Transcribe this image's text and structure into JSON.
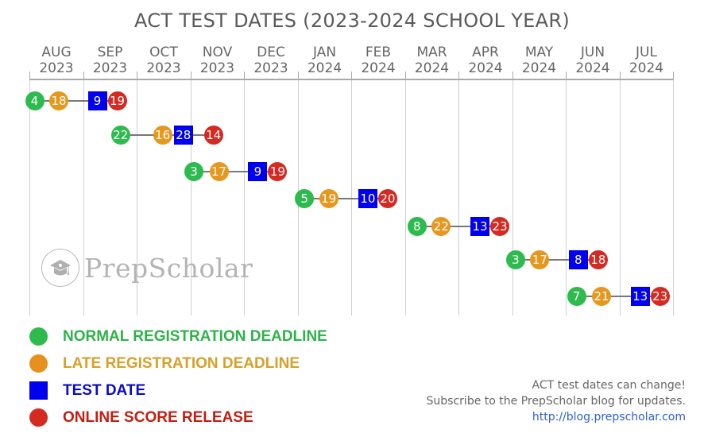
{
  "title": "ACT TEST DATES (2023-2024 SCHOOL YEAR)",
  "months": [
    {
      "month": "AUG",
      "year": "2023"
    },
    {
      "month": "SEP",
      "year": "2023"
    },
    {
      "month": "OCT",
      "year": "2023"
    },
    {
      "month": "NOV",
      "year": "2023"
    },
    {
      "month": "DEC",
      "year": "2023"
    },
    {
      "month": "JAN",
      "year": "2024"
    },
    {
      "month": "FEB",
      "year": "2024"
    },
    {
      "month": "MAR",
      "year": "2024"
    },
    {
      "month": "APR",
      "year": "2024"
    },
    {
      "month": "MAY",
      "year": "2024"
    },
    {
      "month": "JUN",
      "year": "2024"
    },
    {
      "month": "JUL",
      "year": "2024"
    }
  ],
  "colors": {
    "normal_registration": "#2dbb4e",
    "late_registration": "#e6981e",
    "test_date": "#0000ee",
    "score_release": "#d42a22",
    "axis": "#aaaaaa",
    "grid": "#cfcfcf",
    "title": "#5a5a5a"
  },
  "legend": [
    {
      "key": "normal_registration",
      "label": "NORMAL REGISTRATION DEADLINE",
      "shape": "circle",
      "color": "#2dbb4e",
      "text_color": "#2eb34a"
    },
    {
      "key": "late_registration",
      "label": "LATE REGISTRATION DEADLINE",
      "shape": "circle",
      "color": "#e8901e",
      "text_color": "#d7a02a"
    },
    {
      "key": "test_date",
      "label": "TEST DATE",
      "shape": "square",
      "color": "#0000ee",
      "text_color": "#0a0ad0"
    },
    {
      "key": "score_release",
      "label": "ONLINE SCORE RELEASE",
      "shape": "circle",
      "color": "#d42a22",
      "text_color": "#c41d12"
    }
  ],
  "watermark": {
    "text": "PrepScholar",
    "icon": "graduation-cap-icon"
  },
  "footer": {
    "line1": "ACT test dates can change!",
    "line2": "Subscribe to the PrepScholar blog for updates.",
    "link": "http://blog.prepscholar.com"
  },
  "chart_data": {
    "type": "timeline",
    "title": "ACT TEST DATES (2023-2024 SCHOOL YEAR)",
    "x_axis": {
      "categories": [
        "AUG 2023",
        "SEP 2023",
        "OCT 2023",
        "NOV 2023",
        "DEC 2023",
        "JAN 2024",
        "FEB 2024",
        "MAR 2024",
        "APR 2024",
        "MAY 2024",
        "JUN 2024",
        "JUL 2024"
      ],
      "grid": true
    },
    "legend_position": "bottom-left",
    "series_names": [
      "Normal Registration Deadline",
      "Late Registration Deadline",
      "Test Date",
      "Online Score Release"
    ],
    "rows": [
      {
        "test": "September 2023",
        "normal_registration": {
          "date": "2023-08-04",
          "day": "4"
        },
        "late_registration": {
          "date": "2023-08-18",
          "day": "18"
        },
        "test_date": {
          "date": "2023-09-09",
          "day": "9"
        },
        "score_release": {
          "date": "2023-09-19",
          "day": "19"
        }
      },
      {
        "test": "October 2023",
        "normal_registration": {
          "date": "2023-09-22",
          "day": "22"
        },
        "late_registration": {
          "date": "2023-10-16",
          "day": "16"
        },
        "test_date": {
          "date": "2023-10-28",
          "day": "28"
        },
        "score_release": {
          "date": "2023-11-14",
          "day": "14"
        }
      },
      {
        "test": "December 2023",
        "normal_registration": {
          "date": "2023-11-03",
          "day": "3"
        },
        "late_registration": {
          "date": "2023-11-17",
          "day": "17"
        },
        "test_date": {
          "date": "2023-12-09",
          "day": "9"
        },
        "score_release": {
          "date": "2023-12-19",
          "day": "19"
        }
      },
      {
        "test": "February 2024",
        "normal_registration": {
          "date": "2024-01-05",
          "day": "5"
        },
        "late_registration": {
          "date": "2024-01-19",
          "day": "19"
        },
        "test_date": {
          "date": "2024-02-10",
          "day": "10"
        },
        "score_release": {
          "date": "2024-02-20",
          "day": "20"
        }
      },
      {
        "test": "April 2024",
        "normal_registration": {
          "date": "2024-03-08",
          "day": "8"
        },
        "late_registration": {
          "date": "2024-03-22",
          "day": "22"
        },
        "test_date": {
          "date": "2024-04-13",
          "day": "13"
        },
        "score_release": {
          "date": "2024-04-23",
          "day": "23"
        }
      },
      {
        "test": "June 2024",
        "normal_registration": {
          "date": "2024-05-03",
          "day": "3"
        },
        "late_registration": {
          "date": "2024-05-17",
          "day": "17"
        },
        "test_date": {
          "date": "2024-06-08",
          "day": "8"
        },
        "score_release": {
          "date": "2024-06-18",
          "day": "18"
        }
      },
      {
        "test": "July 2024",
        "normal_registration": {
          "date": "2024-06-07",
          "day": "7"
        },
        "late_registration": {
          "date": "2024-06-21",
          "day": "21"
        },
        "test_date": {
          "date": "2024-07-13",
          "day": "13"
        },
        "score_release": {
          "date": "2024-07-23",
          "day": "23"
        }
      }
    ]
  }
}
